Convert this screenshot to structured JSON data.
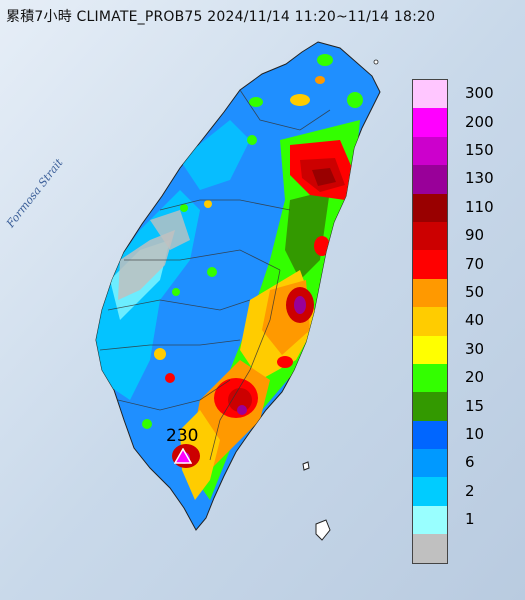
{
  "header": {
    "title": "累積7小時 CLIMATE_PROB75 2024/11/14 11:20~11/14 18:20"
  },
  "map": {
    "sea_label": "Formosa Strait"
  },
  "max_marker": {
    "value": "230",
    "icon": "triangle-marker-icon"
  },
  "legend": {
    "items": [
      {
        "label": "300",
        "color": "#ffc6ff"
      },
      {
        "label": "200",
        "color": "#ff00ff"
      },
      {
        "label": "150",
        "color": "#cc00cc"
      },
      {
        "label": "130",
        "color": "#990099"
      },
      {
        "label": "110",
        "color": "#990000"
      },
      {
        "label": "90",
        "color": "#cc0000"
      },
      {
        "label": "70",
        "color": "#ff0000"
      },
      {
        "label": "50",
        "color": "#ff9900"
      },
      {
        "label": "40",
        "color": "#ffcc00"
      },
      {
        "label": "30",
        "color": "#ffff00"
      },
      {
        "label": "20",
        "color": "#33ff00"
      },
      {
        "label": "15",
        "color": "#339900"
      },
      {
        "label": "10",
        "color": "#0066ff"
      },
      {
        "label": "6",
        "color": "#0099ff"
      },
      {
        "label": "2",
        "color": "#00ccff"
      },
      {
        "label": "1",
        "color": "#99ffff"
      },
      {
        "label": "",
        "color": "#c0c0c0"
      }
    ]
  }
}
